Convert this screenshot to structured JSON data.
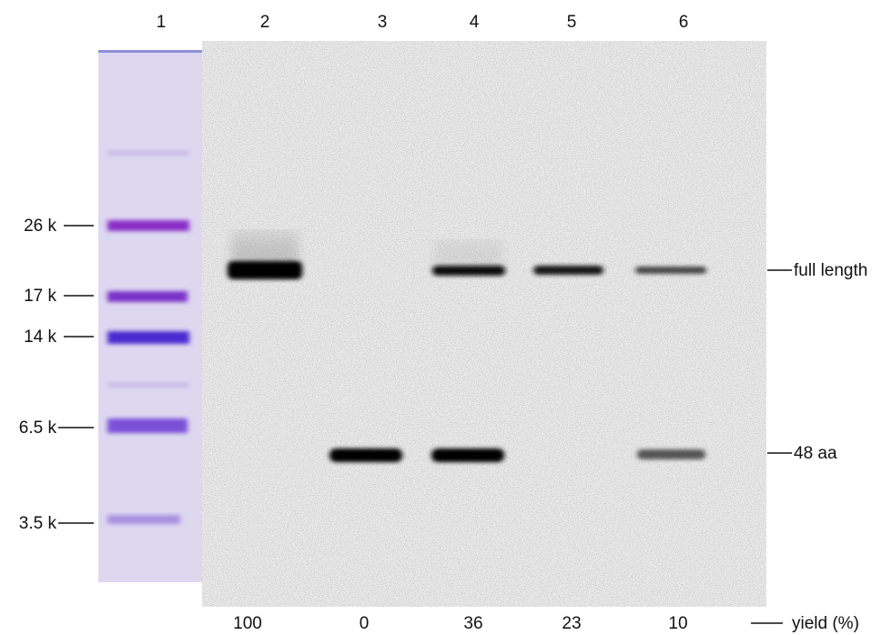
{
  "lanes": [
    "1",
    "2",
    "3",
    "4",
    "5",
    "6"
  ],
  "markers": [
    "26 k",
    "17 k",
    "14 k",
    "6.5 k",
    "3.5 k"
  ],
  "bands": [
    "full length",
    "48 aa"
  ],
  "yields": [
    100,
    0,
    36,
    23,
    10
  ],
  "yield_label": "yield (%)"
}
